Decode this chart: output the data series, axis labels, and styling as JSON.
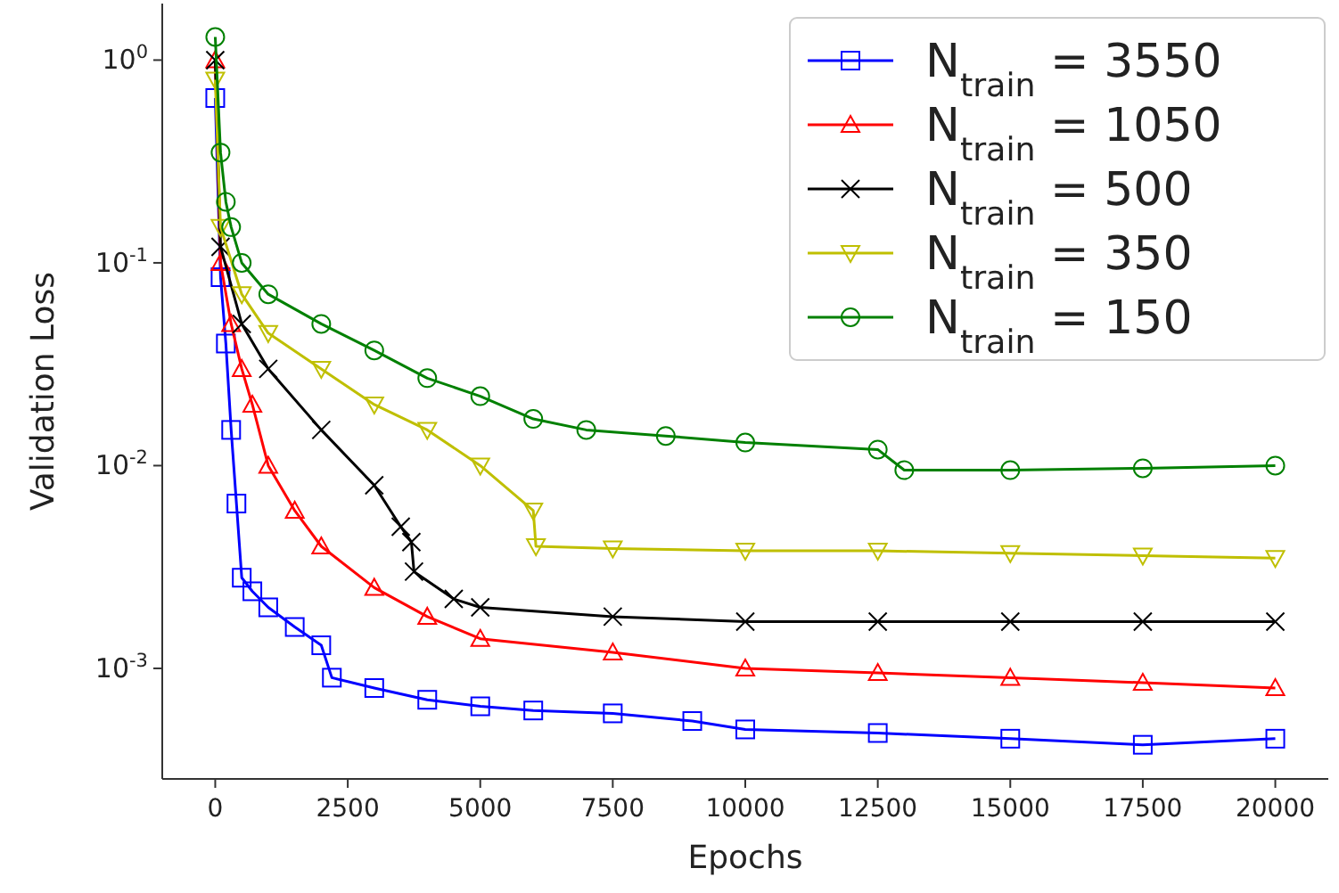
{
  "chart_data": {
    "type": "line",
    "xlabel": "Epochs",
    "ylabel": "Validation Loss",
    "log": "y",
    "legend": "top right",
    "grid": false,
    "line_style": "solid",
    "xlim": [
      -1000,
      21000
    ],
    "xticks": [
      0,
      2500,
      5000,
      7500,
      10000,
      12500,
      15000,
      17500,
      20000
    ],
    "ylim": [
      0.000285,
      1.9
    ],
    "yticks": [
      {
        "value": 0.001,
        "label": "10$^{-3}$"
      },
      {
        "value": 0.01,
        "label": "10$^{-2}$"
      },
      {
        "value": 0.1,
        "label": "10$^{-1}$"
      },
      {
        "value": 1,
        "label": "10$^{0}$"
      }
    ],
    "series": [
      {
        "name": "N$_{train}$ = 3550",
        "color": "#0000ff",
        "marker": "square",
        "x": [
          0,
          100,
          200,
          300,
          400,
          500,
          700,
          1000,
          1500,
          2000,
          2200,
          3000,
          4000,
          5000,
          6000,
          7500,
          9000,
          10000,
          12500,
          15000,
          17500,
          20000
        ],
        "values": [
          0.65,
          0.085,
          0.04,
          0.015,
          0.0065,
          0.0028,
          0.0024,
          0.002,
          0.0016,
          0.0013,
          0.0009,
          0.0008,
          0.0007,
          0.00065,
          0.00062,
          0.0006,
          0.00055,
          0.0005,
          0.00048,
          0.00045,
          0.00042,
          0.00045
        ]
      },
      {
        "name": "N$_{train}$ = 1050",
        "color": "#ff0000",
        "marker": "triangle",
        "x": [
          0,
          100,
          300,
          500,
          700,
          1000,
          1500,
          2000,
          3000,
          4000,
          5000,
          7500,
          10000,
          12500,
          15000,
          17500,
          20000
        ],
        "values": [
          1.0,
          0.1,
          0.05,
          0.03,
          0.02,
          0.01,
          0.006,
          0.004,
          0.0025,
          0.0018,
          0.0014,
          0.0012,
          0.001,
          0.00095,
          0.0009,
          0.00085,
          0.0008
        ]
      },
      {
        "name": "N$_{train}$ = 500",
        "color": "#000000",
        "marker": "cross",
        "x": [
          0,
          100,
          500,
          1000,
          2000,
          3000,
          3500,
          3700,
          3750,
          4500,
          5000,
          7500,
          10000,
          12500,
          15000,
          17500,
          20000
        ],
        "values": [
          1.0,
          0.12,
          0.05,
          0.03,
          0.015,
          0.008,
          0.005,
          0.0042,
          0.003,
          0.0022,
          0.002,
          0.0018,
          0.0017,
          0.0017,
          0.0017,
          0.0017,
          0.0017
        ]
      },
      {
        "name": "N$_{train}$ = 350",
        "color": "#bfbf00",
        "marker": "triangle_down",
        "x": [
          0,
          100,
          500,
          1000,
          2000,
          3000,
          4000,
          5000,
          6000,
          6050,
          7500,
          10000,
          12500,
          15000,
          17500,
          20000
        ],
        "values": [
          0.8,
          0.15,
          0.07,
          0.045,
          0.03,
          0.02,
          0.015,
          0.01,
          0.006,
          0.004,
          0.0039,
          0.0038,
          0.0038,
          0.0037,
          0.0036,
          0.0035
        ]
      },
      {
        "name": "N$_{train}$ = 150",
        "color": "#008000",
        "marker": "circle",
        "x": [
          0,
          100,
          200,
          300,
          500,
          1000,
          2000,
          3000,
          4000,
          5000,
          6000,
          7000,
          8500,
          10000,
          12500,
          13000,
          15000,
          17500,
          20000
        ],
        "values": [
          1.3,
          0.35,
          0.2,
          0.15,
          0.1,
          0.07,
          0.05,
          0.037,
          0.027,
          0.022,
          0.017,
          0.015,
          0.014,
          0.013,
          0.012,
          0.0095,
          0.0095,
          0.0097,
          0.01
        ]
      }
    ]
  }
}
